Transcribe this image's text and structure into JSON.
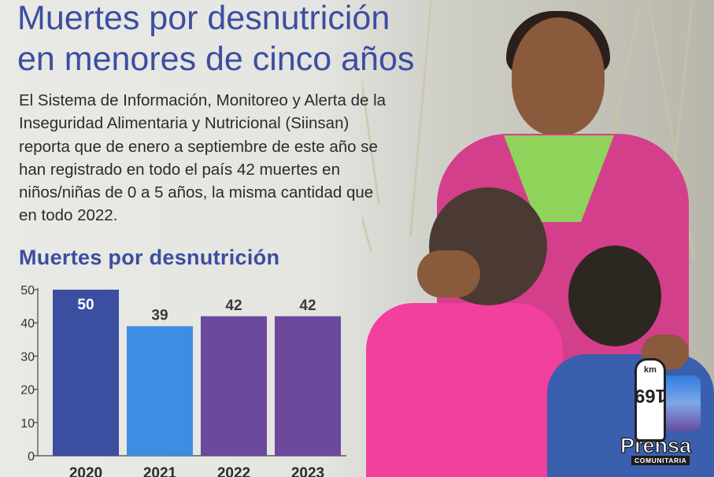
{
  "title_line1": "Muertes por desnutrición",
  "title_line2": "en menores de cinco años",
  "body_text": "El Sistema de Información, Monitoreo y Alerta de la Inseguridad Alimentaria y Nutricional (Siinsan) reporta que de enero a septiembre de este año se han registrado en todo el país 42 muertes en niños/niñas de 0 a 5 años, la misma cantidad que en todo 2022.",
  "logo": {
    "km": "km",
    "number": "169",
    "brand": "Prensa",
    "sub": "COMUNITARIA"
  },
  "colors": {
    "title": "#3b4ea0",
    "bar_2020": "#3b4ea0",
    "bar_2021": "#3d8de3",
    "bar_2022": "#6b4a9e",
    "bar_2023": "#6b4a9e"
  },
  "chart_data": {
    "type": "bar",
    "title": "Muertes por desnutrición",
    "categories": [
      "2020",
      "2021",
      "2022",
      "2023"
    ],
    "values": [
      50,
      39,
      42,
      42
    ],
    "data_labels": [
      "50",
      "39",
      "42",
      "42"
    ],
    "yticks": [
      "0",
      "10",
      "20",
      "30",
      "40",
      "50"
    ],
    "ylim": [
      0,
      50
    ],
    "xlabel": "",
    "ylabel": "",
    "grid": false
  }
}
